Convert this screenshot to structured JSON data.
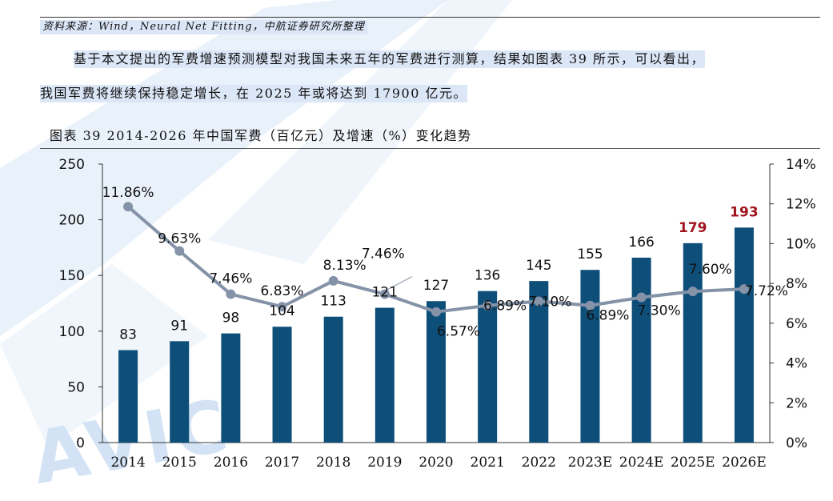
{
  "source_note": "资料来源：Wind，Neural Net Fitting，中航证券研究所整理",
  "paragraph_line1": "基于本文提出的军费增速预测模型对我国未来五年的军费进行测算，结果如图表 39 所示，可以看出，",
  "paragraph_line2": "我国军费将继续保持稳定增长，在 2025 年或将达到 17900 亿元。",
  "figure_title": "图表  39 2014-2026 年中国军费（百亿元）及增速（%）变化趋势",
  "watermark": "AVIC",
  "colors": {
    "bar": "#0e4f7a",
    "line": "#8593a8",
    "highlight": "#a0141e",
    "highlight_bg": "#dbe6f7"
  },
  "chart_data": {
    "type": "bar+line",
    "categories": [
      "2014",
      "2015",
      "2016",
      "2017",
      "2018",
      "2019",
      "2020",
      "2021",
      "2022",
      "2023E",
      "2024E",
      "2025E",
      "2026E"
    ],
    "series": [
      {
        "values": [
          83,
          91,
          98,
          104,
          113,
          121,
          127,
          136,
          145,
          155,
          166,
          179,
          193
        ],
        "value_labels": [
          "83",
          "91",
          "98",
          "104",
          "113",
          "121",
          "127",
          "136",
          "145",
          "155",
          "166",
          "179",
          "193"
        ],
        "axis": "left"
      },
      {
        "values": [
          11.86,
          9.63,
          7.46,
          6.83,
          8.13,
          7.46,
          6.57,
          6.89,
          7.1,
          6.89,
          7.3,
          7.6,
          7.72
        ],
        "value_labels": [
          "11.86%",
          "9.63%",
          "7.46%",
          "6.83%",
          "8.13%",
          "7.46%",
          "6.57%",
          "6.89%",
          "7.10%",
          "6.89%",
          "7.30%",
          "7.60%",
          "7.72%"
        ],
        "axis": "right"
      }
    ],
    "highlighted_bar_labels": [
      "179",
      "193"
    ],
    "left_axis": {
      "ylim": [
        0,
        250
      ],
      "ticks": [
        "0",
        "50",
        "100",
        "150",
        "200",
        "250"
      ]
    },
    "right_axis": {
      "ylim": [
        0,
        14
      ],
      "ticks": [
        "0%",
        "2%",
        "4%",
        "6%",
        "8%",
        "10%",
        "12%",
        "14%"
      ]
    },
    "grid": false
  }
}
